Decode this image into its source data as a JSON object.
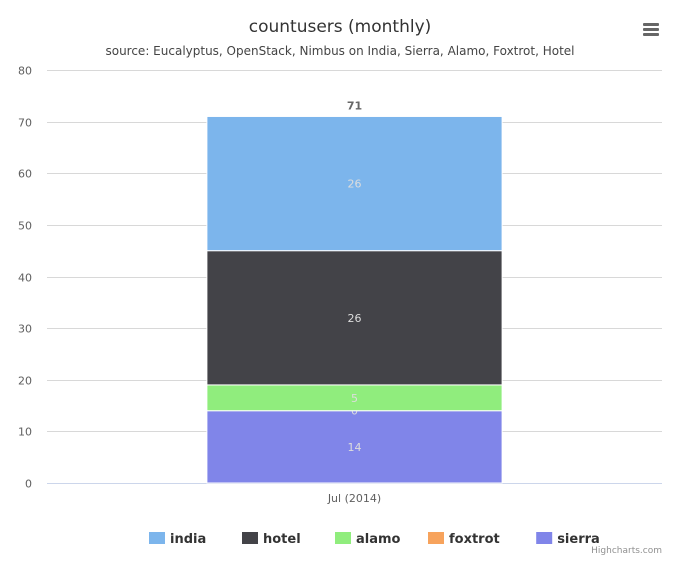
{
  "chart_data": {
    "type": "bar",
    "stacked": true,
    "title": "countusers (monthly)",
    "subtitle": "source: Eucalyptus, OpenStack, Nimbus on India, Sierra, Alamo, Foxtrot, Hotel",
    "categories": [
      "Jul (2014)"
    ],
    "ylim": [
      0,
      80
    ],
    "yticks": [
      0,
      10,
      20,
      30,
      40,
      50,
      60,
      70,
      80
    ],
    "grid": true,
    "legend_position": "bottom-center",
    "totals": [
      71
    ],
    "series": [
      {
        "name": "india",
        "values": [
          26
        ],
        "color": "#7cb5ec"
      },
      {
        "name": "hotel",
        "values": [
          26
        ],
        "color": "#434348"
      },
      {
        "name": "alamo",
        "values": [
          5
        ],
        "color": "#90ed7d"
      },
      {
        "name": "foxtrot",
        "values": [
          0
        ],
        "color": "#f7a35c"
      },
      {
        "name": "sierra",
        "values": [
          14
        ],
        "color": "#8085e9"
      }
    ]
  },
  "credits": "Highcharts.com",
  "menu_icon": "hamburger-menu-icon"
}
